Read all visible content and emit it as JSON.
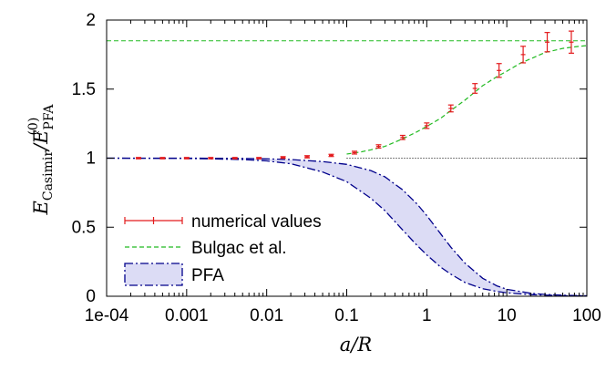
{
  "chart_data": {
    "type": "line",
    "xscale": "log",
    "xlim": [
      0.0001,
      100
    ],
    "ylim": [
      0,
      2
    ],
    "x_ticks": [
      {
        "value": 0.0001,
        "label": "1e-04"
      },
      {
        "value": 0.001,
        "label": "0.001"
      },
      {
        "value": 0.01,
        "label": "0.01"
      },
      {
        "value": 0.1,
        "label": "0.1"
      },
      {
        "value": 1,
        "label": "1"
      },
      {
        "value": 10,
        "label": "10"
      },
      {
        "value": 100,
        "label": "100"
      }
    ],
    "y_ticks": [
      {
        "value": 0,
        "label": "0"
      },
      {
        "value": 0.5,
        "label": "0.5"
      },
      {
        "value": 1,
        "label": "1"
      },
      {
        "value": 1.5,
        "label": "1.5"
      },
      {
        "value": 2,
        "label": "2"
      }
    ],
    "xlabel": "a/R",
    "ylabel": {
      "main": "E",
      "sub": "Casimir",
      "sep": "/E",
      "sub2": "PFA",
      "sup2": "(0)"
    },
    "legend_position": "bottom-left",
    "colors": {
      "numerical": "#e31a1c",
      "bulgac": "#22bb22",
      "pfa_line": "#00008b",
      "pfa_fill": "#dcdcf5",
      "reference": "#000000"
    },
    "series": [
      {
        "name": "numerical values",
        "style": "points-with-errorbars",
        "points": [
          {
            "x": 0.00025,
            "y": 1.0,
            "err": 0.005
          },
          {
            "x": 0.0005,
            "y": 1.0,
            "err": 0.005
          },
          {
            "x": 0.001,
            "y": 1.0,
            "err": 0.005
          },
          {
            "x": 0.002,
            "y": 1.0,
            "err": 0.005
          },
          {
            "x": 0.004,
            "y": 1.0,
            "err": 0.005
          },
          {
            "x": 0.008,
            "y": 1.0,
            "err": 0.005
          },
          {
            "x": 0.016,
            "y": 1.005,
            "err": 0.006
          },
          {
            "x": 0.032,
            "y": 1.01,
            "err": 0.008
          },
          {
            "x": 0.064,
            "y": 1.02,
            "err": 0.008
          },
          {
            "x": 0.125,
            "y": 1.04,
            "err": 0.01
          },
          {
            "x": 0.25,
            "y": 1.085,
            "err": 0.012
          },
          {
            "x": 0.5,
            "y": 1.15,
            "err": 0.015
          },
          {
            "x": 1.0,
            "y": 1.235,
            "err": 0.02
          },
          {
            "x": 2.0,
            "y": 1.36,
            "err": 0.025
          },
          {
            "x": 4.0,
            "y": 1.505,
            "err": 0.035
          },
          {
            "x": 8.0,
            "y": 1.635,
            "err": 0.05
          },
          {
            "x": 16.0,
            "y": 1.75,
            "err": 0.06
          },
          {
            "x": 32.0,
            "y": 1.84,
            "err": 0.07
          },
          {
            "x": 64.0,
            "y": 1.84,
            "err": 0.08
          }
        ]
      },
      {
        "name": "Bulgac et al.",
        "style": "dashed",
        "x": [
          0.1,
          0.15,
          0.2,
          0.3,
          0.5,
          0.75,
          1,
          1.5,
          2,
          3,
          5,
          7.5,
          10,
          15,
          20,
          30,
          50,
          75,
          100
        ],
        "y": [
          1.03,
          1.045,
          1.06,
          1.085,
          1.14,
          1.19,
          1.23,
          1.29,
          1.345,
          1.42,
          1.525,
          1.59,
          1.63,
          1.69,
          1.72,
          1.765,
          1.795,
          1.808,
          1.815
        ]
      },
      {
        "name": "PFA",
        "style": "band-dashdot",
        "x": [
          0.0001,
          0.001,
          0.005,
          0.01,
          0.02,
          0.05,
          0.1,
          0.2,
          0.3,
          0.5,
          0.75,
          1,
          1.5,
          2,
          3,
          5,
          7.5,
          10,
          20,
          30,
          50,
          100
        ],
        "upper": [
          1.0,
          1.0,
          0.998,
          0.995,
          0.99,
          0.975,
          0.955,
          0.91,
          0.865,
          0.77,
          0.67,
          0.585,
          0.45,
          0.355,
          0.24,
          0.13,
          0.075,
          0.05,
          0.022,
          0.013,
          0.007,
          0.003
        ],
        "lower": [
          1.0,
          0.998,
          0.99,
          0.98,
          0.96,
          0.9,
          0.83,
          0.71,
          0.62,
          0.48,
          0.37,
          0.3,
          0.21,
          0.16,
          0.1,
          0.055,
          0.035,
          0.025,
          0.012,
          0.008,
          0.004,
          0.002
        ]
      }
    ],
    "reference_lines": [
      {
        "y": 1.85,
        "x_from": 0.0001,
        "style": "dashed",
        "color_key": "bulgac"
      },
      {
        "y": 1.0,
        "x_from": 0.1,
        "style": "dotted",
        "color_key": "reference"
      }
    ]
  }
}
